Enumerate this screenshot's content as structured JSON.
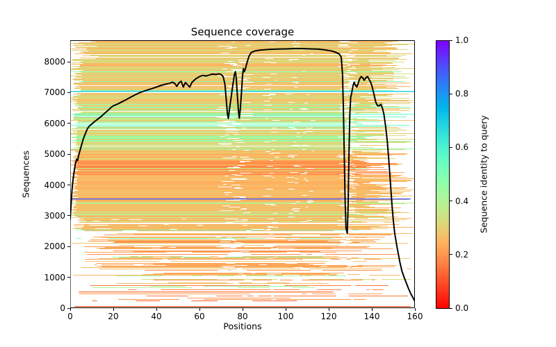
{
  "figure": {
    "title": "Sequence coverage"
  },
  "chart_data": {
    "type": "line+heatmap",
    "description": "MSA sequence coverage plot: horizontal lines are aligned sequences colored by identity to query (rainbow_r colormap), black line is per-position coverage count",
    "title": "Sequence coverage",
    "xlabel": "Positions",
    "ylabel": "Sequences",
    "xlim": [
      0,
      160
    ],
    "ylim": [
      0,
      8700
    ],
    "xticks": [
      0,
      20,
      40,
      60,
      80,
      100,
      120,
      140,
      160
    ],
    "yticks": [
      0,
      1000,
      2000,
      3000,
      4000,
      5000,
      6000,
      7000,
      8000
    ],
    "grid": false,
    "colorbar": {
      "label": "Sequence identity to query",
      "ticks": [
        0.0,
        0.2,
        0.4,
        0.6,
        0.8,
        1.0
      ],
      "colormap": "rainbow_r",
      "min_color": "#ff0000",
      "max_color": "#8000ff",
      "position": "right"
    },
    "coverage_line": {
      "color": "#000000",
      "points": [
        [
          0,
          2880
        ],
        [
          0.4,
          3350
        ],
        [
          0.8,
          3800
        ],
        [
          1.2,
          4100
        ],
        [
          1.8,
          4420
        ],
        [
          2.4,
          4680
        ],
        [
          3,
          4840
        ],
        [
          3.4,
          4790
        ],
        [
          4,
          4980
        ],
        [
          5,
          5230
        ],
        [
          6,
          5480
        ],
        [
          7,
          5660
        ],
        [
          8,
          5830
        ],
        [
          9,
          5920
        ],
        [
          10,
          5980
        ],
        [
          11.5,
          6070
        ],
        [
          13,
          6150
        ],
        [
          14.5,
          6230
        ],
        [
          16,
          6330
        ],
        [
          17.5,
          6420
        ],
        [
          19,
          6520
        ],
        [
          20,
          6570
        ],
        [
          22,
          6630
        ],
        [
          24,
          6700
        ],
        [
          26,
          6770
        ],
        [
          28,
          6850
        ],
        [
          30,
          6920
        ],
        [
          32,
          6990
        ],
        [
          34,
          7040
        ],
        [
          36,
          7090
        ],
        [
          38,
          7130
        ],
        [
          40,
          7180
        ],
        [
          42,
          7230
        ],
        [
          44,
          7270
        ],
        [
          46,
          7300
        ],
        [
          47.5,
          7340
        ],
        [
          48.5,
          7300
        ],
        [
          49.5,
          7200
        ],
        [
          50.5,
          7320
        ],
        [
          51.5,
          7370
        ],
        [
          52.5,
          7180
        ],
        [
          53.5,
          7330
        ],
        [
          54.5,
          7250
        ],
        [
          55.5,
          7180
        ],
        [
          56.5,
          7330
        ],
        [
          57.5,
          7400
        ],
        [
          58.5,
          7460
        ],
        [
          60,
          7520
        ],
        [
          61.5,
          7560
        ],
        [
          63,
          7540
        ],
        [
          64.5,
          7570
        ],
        [
          66,
          7600
        ],
        [
          67.5,
          7590
        ],
        [
          69,
          7610
        ],
        [
          70,
          7590
        ],
        [
          71,
          7520
        ],
        [
          71.8,
          7280
        ],
        [
          72.4,
          6800
        ],
        [
          73,
          6300
        ],
        [
          73.4,
          6160
        ],
        [
          74,
          6500
        ],
        [
          74.8,
          6900
        ],
        [
          75.6,
          7300
        ],
        [
          76.2,
          7580
        ],
        [
          76.7,
          7680
        ],
        [
          77.1,
          7450
        ],
        [
          77.6,
          6900
        ],
        [
          78.1,
          6400
        ],
        [
          78.5,
          6170
        ],
        [
          79,
          6500
        ],
        [
          79.5,
          7000
        ],
        [
          80,
          7550
        ],
        [
          80.4,
          7780
        ],
        [
          80.8,
          7680
        ],
        [
          81.3,
          7760
        ],
        [
          82,
          7960
        ],
        [
          83,
          8180
        ],
        [
          84,
          8300
        ],
        [
          85.5,
          8350
        ],
        [
          88,
          8380
        ],
        [
          92,
          8400
        ],
        [
          96,
          8410
        ],
        [
          100,
          8420
        ],
        [
          104,
          8430
        ],
        [
          108,
          8430
        ],
        [
          112,
          8420
        ],
        [
          115,
          8410
        ],
        [
          118,
          8390
        ],
        [
          120,
          8370
        ],
        [
          122,
          8340
        ],
        [
          123.5,
          8300
        ],
        [
          124.8,
          8260
        ],
        [
          125.8,
          8150
        ],
        [
          126.4,
          7600
        ],
        [
          126.8,
          6500
        ],
        [
          127.2,
          5000
        ],
        [
          127.6,
          3500
        ],
        [
          128,
          2600
        ],
        [
          128.6,
          2430
        ],
        [
          129,
          3300
        ],
        [
          129.4,
          5000
        ],
        [
          129.8,
          6300
        ],
        [
          130.2,
          6850
        ],
        [
          130.7,
          7000
        ],
        [
          131.2,
          7200
        ],
        [
          131.8,
          7340
        ],
        [
          132.4,
          7240
        ],
        [
          133,
          7180
        ],
        [
          133.6,
          7280
        ],
        [
          134.3,
          7440
        ],
        [
          135,
          7520
        ],
        [
          135.8,
          7480
        ],
        [
          136.5,
          7400
        ],
        [
          137.2,
          7480
        ],
        [
          138,
          7520
        ],
        [
          138.8,
          7420
        ],
        [
          139.5,
          7330
        ],
        [
          140.2,
          7180
        ],
        [
          141,
          6950
        ],
        [
          141.8,
          6700
        ],
        [
          142.6,
          6580
        ],
        [
          143.4,
          6570
        ],
        [
          144.2,
          6620
        ],
        [
          144.9,
          6500
        ],
        [
          145.6,
          6300
        ],
        [
          146.4,
          5900
        ],
        [
          147.2,
          5400
        ],
        [
          148,
          4700
        ],
        [
          148.7,
          4000
        ],
        [
          149.3,
          3400
        ],
        [
          149.9,
          2900
        ],
        [
          150.6,
          2450
        ],
        [
          151.4,
          2100
        ],
        [
          152.2,
          1800
        ],
        [
          153,
          1500
        ],
        [
          154,
          1200
        ],
        [
          155,
          1000
        ],
        [
          156,
          820
        ],
        [
          157,
          640
        ],
        [
          158,
          480
        ],
        [
          158.8,
          380
        ],
        [
          159.4,
          300
        ],
        [
          159.9,
          230
        ]
      ]
    },
    "msa_texture": {
      "seed": 42,
      "bands": [
        {
          "from": 0,
          "to": 250,
          "density": 0.18,
          "frag": 0.8,
          "id": [
            0.08,
            0.2
          ],
          "accent_p": 0.05,
          "accent_id": [
            0.3,
            0.4
          ],
          "start": [
            2,
            70
          ],
          "end": [
            100,
            160
          ]
        },
        {
          "from": 250,
          "to": 700,
          "density": 0.3,
          "frag": 0.75,
          "id": [
            0.12,
            0.24
          ],
          "accent_p": 0.07,
          "accent_id": [
            0.3,
            0.42
          ],
          "start": [
            2,
            55
          ],
          "end": [
            105,
            160
          ]
        },
        {
          "from": 700,
          "to": 1500,
          "density": 0.5,
          "frag": 0.6,
          "id": [
            0.15,
            0.27
          ],
          "accent_p": 0.1,
          "accent_id": [
            0.32,
            0.45
          ],
          "start": [
            0,
            45
          ],
          "end": [
            110,
            160
          ]
        },
        {
          "from": 1500,
          "to": 2450,
          "density": 0.62,
          "frag": 0.5,
          "id": [
            0.18,
            0.3
          ],
          "accent_p": 0.14,
          "accent_id": [
            0.33,
            0.48
          ],
          "start": [
            0,
            30
          ],
          "end": [
            115,
            160
          ]
        },
        {
          "from": 2450,
          "to": 2950,
          "density": 0.82,
          "frag": 0.3,
          "id": [
            0.22,
            0.3
          ],
          "accent_p": 0.2,
          "accent_id": [
            0.34,
            0.5
          ],
          "start": [
            0,
            12
          ],
          "end": [
            122,
            160
          ]
        },
        {
          "from": 2950,
          "to": 3450,
          "density": 0.96,
          "frag": 0.12,
          "id": [
            0.23,
            0.3
          ],
          "accent_p": 0.3,
          "accent_id": [
            0.33,
            0.44
          ],
          "start": [
            0,
            4
          ],
          "end": [
            132,
            160
          ]
        },
        {
          "from": 3450,
          "to": 4300,
          "density": 0.98,
          "frag": 0.05,
          "id": [
            0.23,
            0.28
          ],
          "accent_p": 0.05,
          "accent_id": [
            0.32,
            0.4
          ],
          "start": [
            0,
            4
          ],
          "end": [
            134,
            160
          ]
        },
        {
          "from": 4300,
          "to": 4800,
          "density": 0.96,
          "frag": 0.08,
          "id": [
            0.16,
            0.25
          ],
          "accent_p": 0.06,
          "accent_id": [
            0.3,
            0.38
          ],
          "start": [
            0,
            4
          ],
          "end": [
            130,
            160
          ]
        },
        {
          "from": 4800,
          "to": 5100,
          "density": 0.95,
          "frag": 0.08,
          "id": [
            0.22,
            0.3
          ],
          "accent_p": 0.12,
          "accent_id": [
            0.32,
            0.45
          ],
          "start": [
            0,
            4
          ],
          "end": [
            130,
            160
          ]
        },
        {
          "from": 5100,
          "to": 6350,
          "density": 0.92,
          "frag": 0.12,
          "id": [
            0.26,
            0.38
          ],
          "accent_p": 0.33,
          "accent_id": [
            0.38,
            0.55
          ],
          "start": [
            0,
            4
          ],
          "end": [
            128,
            160
          ]
        },
        {
          "from": 6350,
          "to": 7100,
          "density": 0.93,
          "frag": 0.15,
          "id": [
            0.25,
            0.36
          ],
          "accent_p": 0.15,
          "accent_id": [
            0.38,
            0.52
          ],
          "start": [
            0,
            6
          ],
          "end": [
            133,
            160
          ]
        },
        {
          "from": 7100,
          "to": 8100,
          "density": 0.95,
          "frag": 0.12,
          "id": [
            0.24,
            0.34
          ],
          "accent_p": 0.08,
          "accent_id": [
            0.36,
            0.5
          ],
          "start": [
            0,
            6
          ],
          "end": [
            136,
            160
          ]
        },
        {
          "from": 8100,
          "to": 8700,
          "density": 0.96,
          "frag": 0.1,
          "id": [
            0.25,
            0.33
          ],
          "accent_p": 0.05,
          "accent_id": [
            0.35,
            0.45
          ],
          "start": [
            0,
            14
          ],
          "end": [
            140,
            160
          ]
        }
      ],
      "special_rows": [
        {
          "y": 3560,
          "identity": 0.88,
          "x0": 0,
          "x1": 158
        },
        {
          "y": 7060,
          "identity": 0.7,
          "x0": 0,
          "x1": 160
        },
        {
          "y": 60,
          "identity": 0.12,
          "x0": 2,
          "x1": 158
        },
        {
          "y": 540,
          "identity": 0.16,
          "x0": 4,
          "x1": 122
        }
      ],
      "gap_bands": [
        {
          "x0": 70,
          "x1": 83,
          "p": 0.45,
          "w": 6
        },
        {
          "x0": 91,
          "x1": 96,
          "p": 0.2,
          "w": 3
        },
        {
          "x0": 102,
          "x1": 106,
          "p": 0.12,
          "w": 3
        },
        {
          "x0": 108,
          "x1": 113,
          "p": 0.1,
          "w": 3
        },
        {
          "x0": 126,
          "x1": 132,
          "p": 0.55,
          "w": 5
        }
      ]
    }
  }
}
